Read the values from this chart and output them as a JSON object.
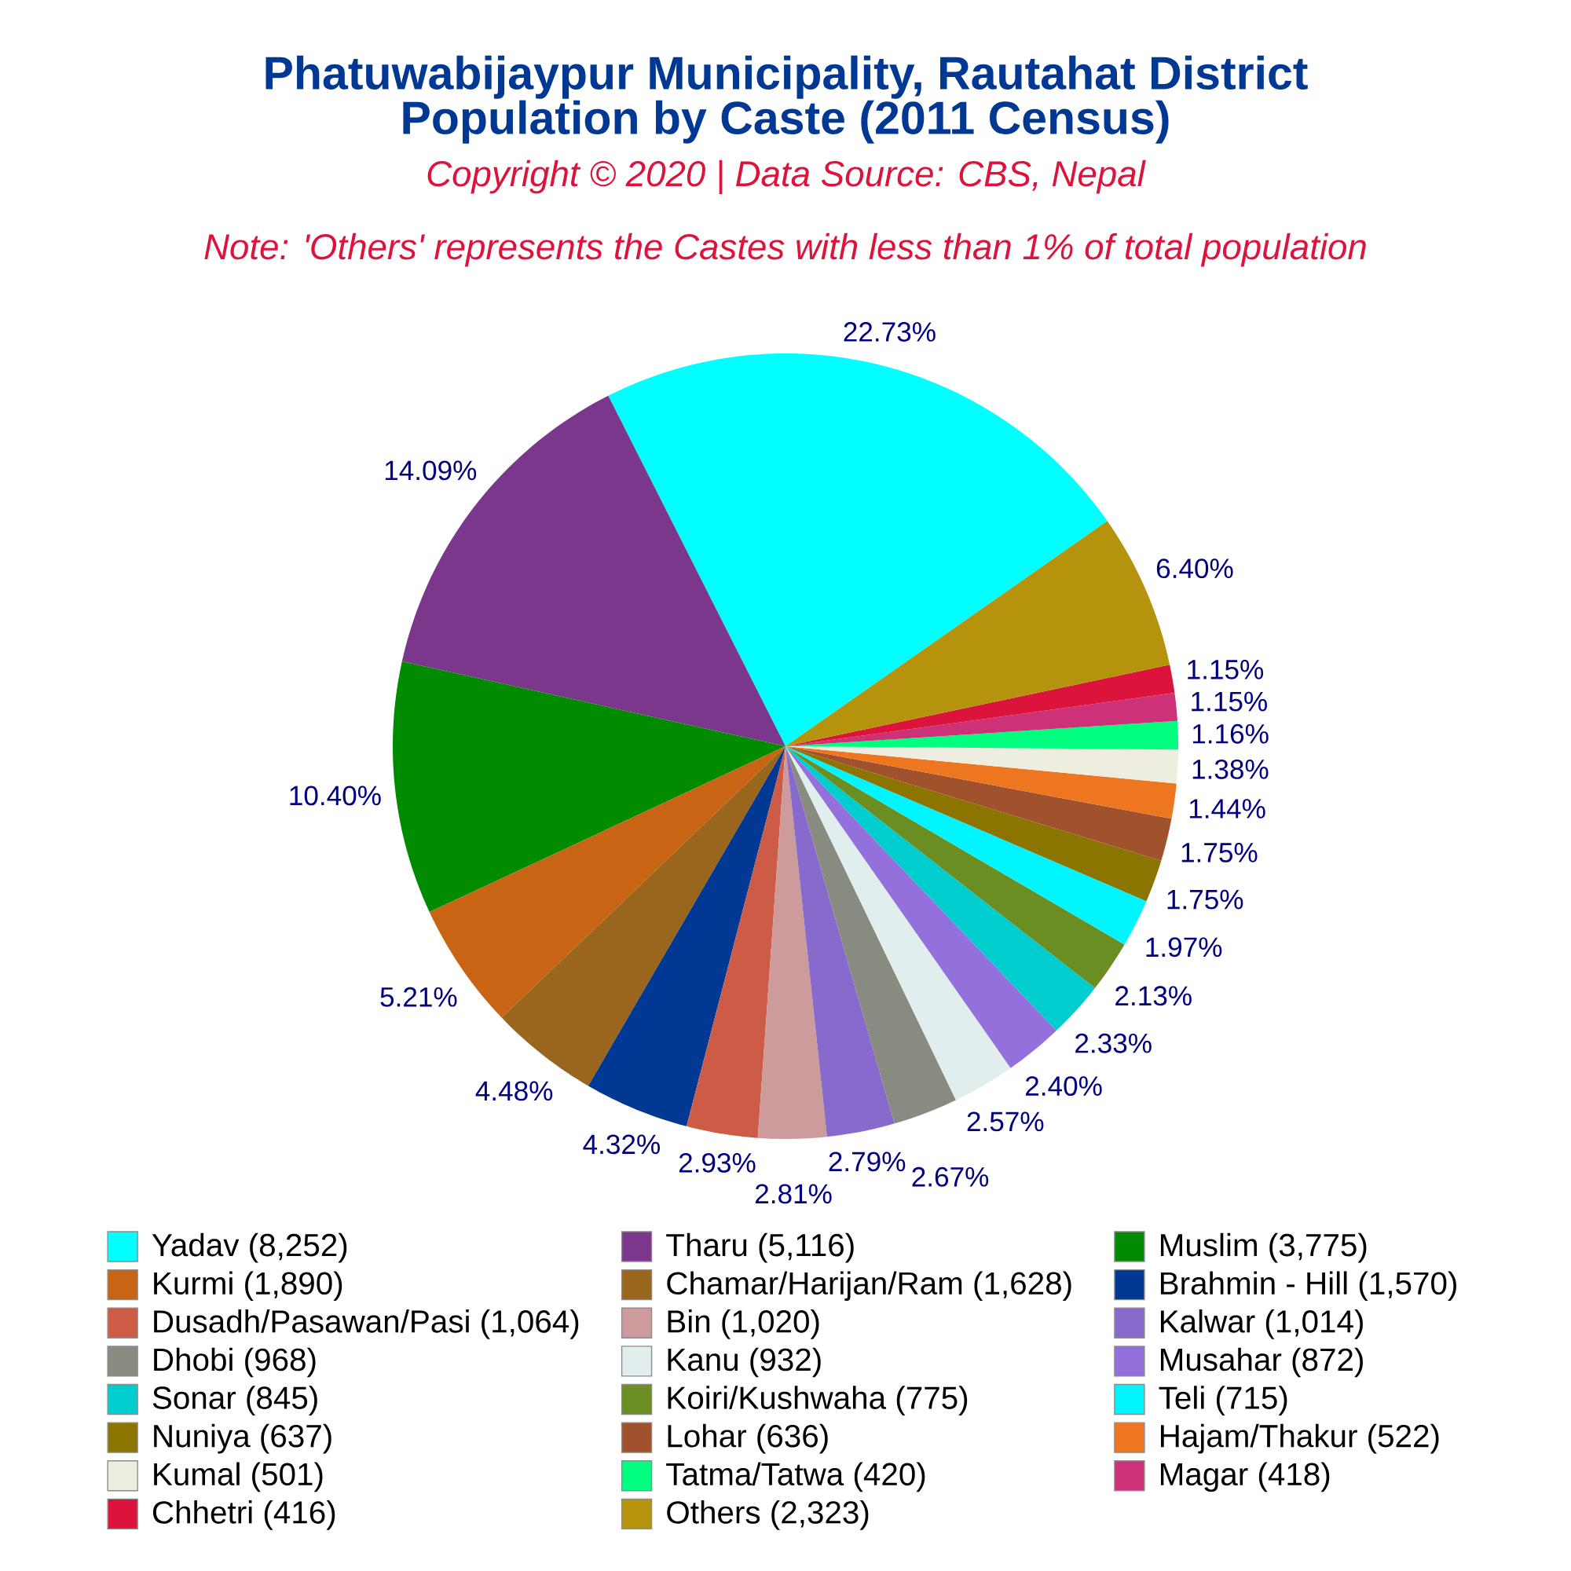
{
  "chart_data": {
    "type": "pie",
    "title": "Phatuwabijaypur Municipality, Rautahat District Population by Caste (2011 Census)",
    "subtitle": "Copyright © 2020 | Data Source: CBS, Nepal",
    "annotations": [
      "Note: 'Others' represents the Castes with less than 1% of total population"
    ],
    "categories": [
      "Yadav (8,252)",
      "Tharu (5,116)",
      "Muslim (3,775)",
      "Kurmi (1,890)",
      "Chamar/Harijan/Ram (1,628)",
      "Brahmin - Hill (1,570)",
      "Dusadh/Pasawan/Pasi (1,064)",
      "Bin (1,020)",
      "Kalwar (1,014)",
      "Dhobi (968)",
      "Kanu (932)",
      "Musahar (872)",
      "Sonar (845)",
      "Koiri/Kushwaha (775)",
      "Teli (715)",
      "Nuniya (637)",
      "Lohar (636)",
      "Hajam/Thakur (522)",
      "Kumal (501)",
      "Tatma/Tatwa (420)",
      "Magar (418)",
      "Chhetri (416)",
      "Others (2,323)"
    ],
    "values": [
      22.73,
      14.09,
      10.4,
      5.21,
      4.48,
      4.32,
      2.93,
      2.81,
      2.79,
      2.67,
      2.57,
      2.4,
      2.33,
      2.13,
      1.97,
      1.75,
      1.75,
      1.44,
      1.38,
      1.16,
      1.15,
      1.15,
      6.4
    ],
    "colors": [
      "#00ffff",
      "#7a378b",
      "#008b00",
      "#c86414",
      "#9a661e",
      "#003893",
      "#cd5c47",
      "#cd9b9b",
      "#886acd",
      "#878b80",
      "#e0eeee",
      "#9370db",
      "#00cdcd",
      "#6b8e23",
      "#00f5ff",
      "#8b7500",
      "#a0522d",
      "#ee7621",
      "#eeeee0",
      "#00ff7f",
      "#cd3278",
      "#dc143c",
      "#b5930c"
    ],
    "value_labels": [
      "22.73%",
      "14.09%",
      "10.40%",
      "5.21%",
      "4.48%",
      "4.32%",
      "2.93%",
      "2.81%",
      "2.79%",
      "2.67%",
      "2.57%",
      "2.40%",
      "2.33%",
      "2.13%",
      "1.97%",
      "1.75%",
      "1.75%",
      "1.44%",
      "1.38%",
      "1.16%",
      "1.15%",
      "1.15%",
      "6.40%"
    ],
    "legend": "bottom"
  }
}
